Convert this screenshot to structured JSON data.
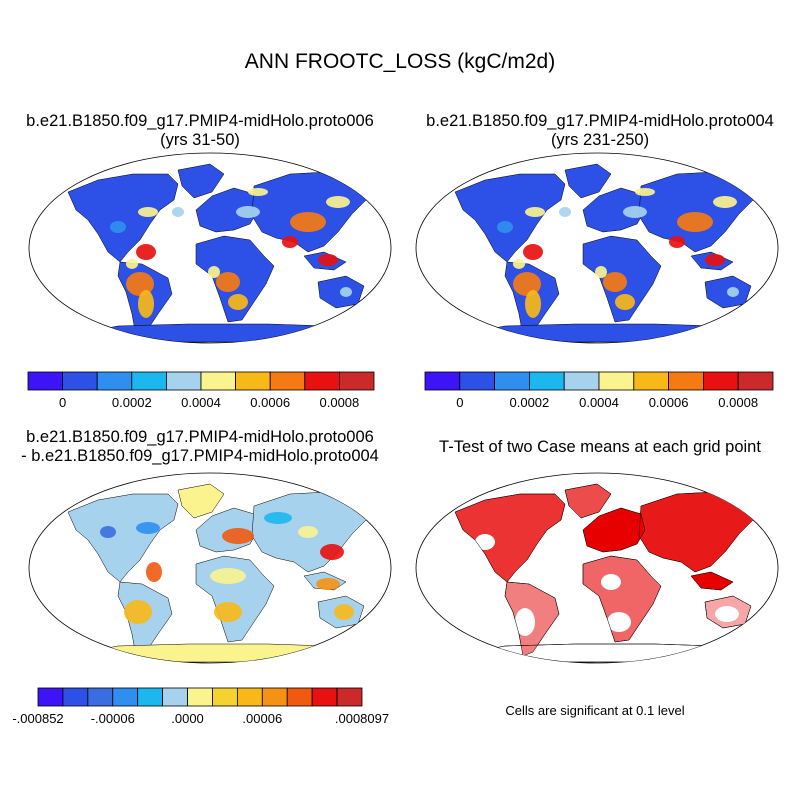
{
  "title": "ANN FROOTC_LOSS (kgC/m2d)",
  "panels": [
    {
      "id": "case1",
      "title_line1": "b.e21.B1850.f09_g17.PMIP4-midHolo.proto006",
      "title_line2": "(yrs 31-50)"
    },
    {
      "id": "case2",
      "title_line1": "b.e21.B1850.f09_g17.PMIP4-midHolo.proto004",
      "title_line2": "(yrs 231-250)"
    },
    {
      "id": "diff",
      "title_line1": "b.e21.B1850.f09_g17.PMIP4-midHolo.proto006",
      "title_line2": "- b.e21.B1850.f09_g17.PMIP4-midHolo.proto004"
    },
    {
      "id": "ttest",
      "title_line1": "T-Test of two Case means at each grid point",
      "title_line2": ""
    }
  ],
  "colorbar_main": {
    "colors": [
      "#3c14f5",
      "#2d50e6",
      "#2f8ff0",
      "#1cb7ef",
      "#a6d2ee",
      "#fbf38e",
      "#f8b918",
      "#f57a13",
      "#e81010",
      "#cc2a2a"
    ],
    "labels": [
      "0",
      "0.0002",
      "0.0004",
      "0.0006",
      "0.0008"
    ]
  },
  "colorbar_diff": {
    "colors": [
      "#3c14f5",
      "#2d50e6",
      "#3a6ee0",
      "#2f8ff0",
      "#1cb7ef",
      "#a6d2ee",
      "#fbf38e",
      "#f6d230",
      "#f8b918",
      "#f59213",
      "#f05a10",
      "#e81010",
      "#cc2a2a"
    ],
    "labels": [
      "-.000852",
      "-.00006",
      ".0000",
      ".00006",
      ".0008097"
    ]
  },
  "ttest_note": "Cells are significant at 0.1 level",
  "legend_ttest_color": "#e60000"
}
